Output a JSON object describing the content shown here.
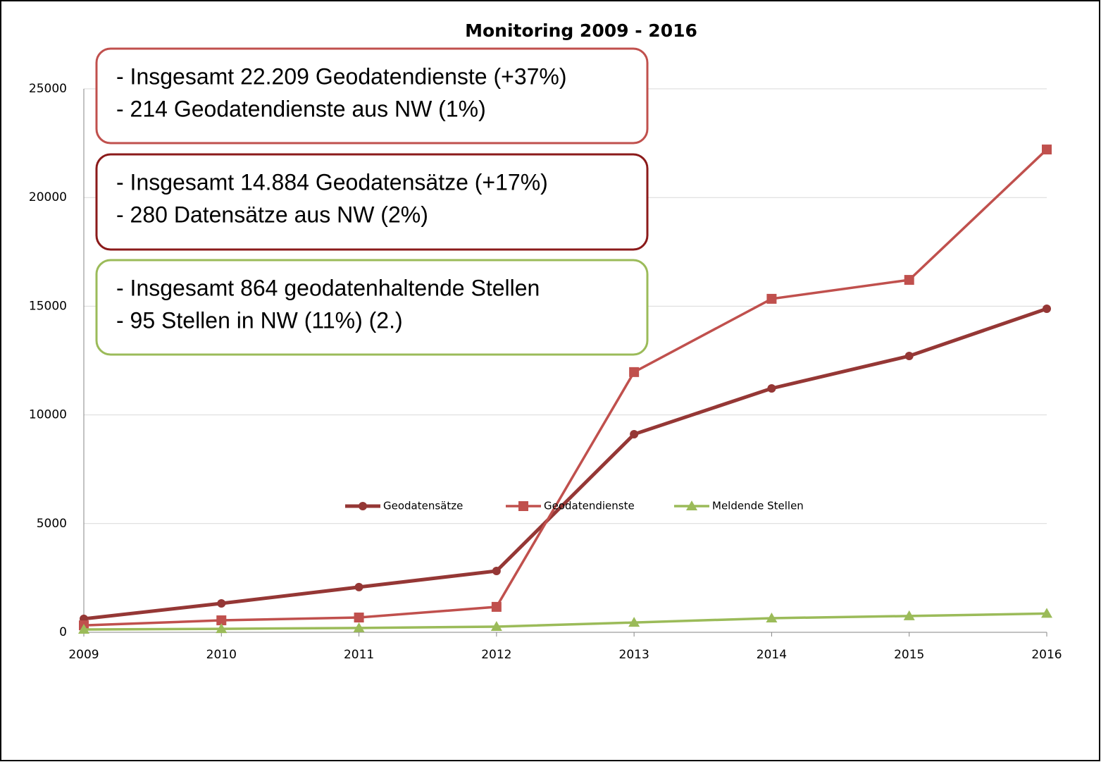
{
  "chart_data": {
    "type": "line",
    "title": "Monitoring 2009 - 2016",
    "x": [
      2009,
      2010,
      2011,
      2012,
      2013,
      2014,
      2015,
      2016
    ],
    "xlim": [
      2009,
      2016
    ],
    "xticks": [
      2009,
      2010,
      2011,
      2012,
      2013,
      2014,
      2015,
      2016
    ],
    "ylim": [
      0,
      25000
    ],
    "yticks": [
      0,
      5000,
      10000,
      15000,
      20000,
      25000
    ],
    "grid": true,
    "legend": "bottom",
    "series": [
      {
        "name": "Geodatensätze",
        "color": "#953735",
        "marker": "circle",
        "values": [
          620,
          1330,
          2080,
          2820,
          9110,
          11220,
          12710,
          14884
        ]
      },
      {
        "name": "Geodatendienste",
        "color": "#c0504d",
        "marker": "square",
        "values": [
          320,
          550,
          680,
          1170,
          11970,
          15340,
          16210,
          22209
        ]
      },
      {
        "name": "Meldende Stellen",
        "color": "#9bbb59",
        "marker": "triangle",
        "values": [
          130,
          160,
          200,
          260,
          450,
          650,
          750,
          864
        ]
      }
    ],
    "annotations": [
      {
        "color": "#c0504d",
        "lines": [
          "- Insgesamt 22.209 Geodatendienste (+37%)",
          "- 214 Geodatendienste aus NW (1%)"
        ]
      },
      {
        "color": "#8b1a1a",
        "lines": [
          "- Insgesamt 14.884 Geodatensätze (+17%)",
          "- 280 Datensätze aus NW (2%)"
        ]
      },
      {
        "color": "#9bbb59",
        "lines": [
          "- Insgesamt 864 geodatenhaltende Stellen",
          "- 95 Stellen in NW (11%) (2.)"
        ]
      }
    ]
  }
}
